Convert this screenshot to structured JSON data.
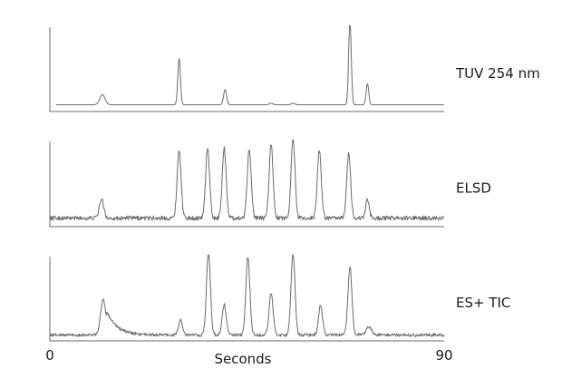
{
  "chart_data": {
    "type": "line",
    "xlabel": "Seconds",
    "xlim": [
      0,
      90
    ],
    "x_ticks": [
      "0",
      "90"
    ],
    "grid": false,
    "line_color": "#6a6a6a",
    "series": [
      {
        "name": "TUV 254 nm",
        "baseline": 0.08,
        "noise": 0.0,
        "peaks": [
          {
            "x": 12,
            "height": 0.12,
            "width": 0.6,
            "tail": 0
          },
          {
            "x": 29.5,
            "height": 0.55,
            "width": 0.3,
            "tail": 0
          },
          {
            "x": 40,
            "height": 0.18,
            "width": 0.35,
            "tail": 0
          },
          {
            "x": 50.5,
            "height": 0.02,
            "width": 0.4,
            "tail": 0
          },
          {
            "x": 55.5,
            "height": 0.02,
            "width": 0.4,
            "tail": 0
          },
          {
            "x": 68.5,
            "height": 1.0,
            "width": 0.3,
            "tail": 0
          },
          {
            "x": 72.5,
            "height": 0.25,
            "width": 0.3,
            "tail": 0
          }
        ]
      },
      {
        "name": "ELSD",
        "baseline": 0.1,
        "noise": 0.025,
        "peaks": [
          {
            "x": 11.8,
            "height": 0.22,
            "width": 0.5,
            "tail": 0
          },
          {
            "x": 29.5,
            "height": 0.8,
            "width": 0.45,
            "tail": 0
          },
          {
            "x": 36,
            "height": 0.82,
            "width": 0.45,
            "tail": 0
          },
          {
            "x": 39.8,
            "height": 0.82,
            "width": 0.45,
            "tail": 0
          },
          {
            "x": 45.5,
            "height": 0.82,
            "width": 0.45,
            "tail": 0
          },
          {
            "x": 50.5,
            "height": 0.86,
            "width": 0.45,
            "tail": 0
          },
          {
            "x": 55.5,
            "height": 0.94,
            "width": 0.45,
            "tail": 0
          },
          {
            "x": 61.5,
            "height": 0.8,
            "width": 0.45,
            "tail": 0
          },
          {
            "x": 68.2,
            "height": 0.76,
            "width": 0.45,
            "tail": 0
          },
          {
            "x": 72.5,
            "height": 0.22,
            "width": 0.4,
            "tail": 0
          }
        ]
      },
      {
        "name": "ES+ TIC",
        "baseline": 0.07,
        "noise": 0.018,
        "peaks": [
          {
            "x": 12.2,
            "height": 0.42,
            "width": 0.6,
            "tail": 2.2
          },
          {
            "x": 29.8,
            "height": 0.17,
            "width": 0.45,
            "tail": 0
          },
          {
            "x": 36.2,
            "height": 0.98,
            "width": 0.45,
            "tail": 0
          },
          {
            "x": 39.8,
            "height": 0.36,
            "width": 0.45,
            "tail": 0
          },
          {
            "x": 45.2,
            "height": 0.93,
            "width": 0.45,
            "tail": 0
          },
          {
            "x": 50.5,
            "height": 0.5,
            "width": 0.45,
            "tail": 0
          },
          {
            "x": 55.5,
            "height": 0.97,
            "width": 0.45,
            "tail": 0
          },
          {
            "x": 61.8,
            "height": 0.35,
            "width": 0.45,
            "tail": 0
          },
          {
            "x": 68.5,
            "height": 0.81,
            "width": 0.45,
            "tail": 0
          },
          {
            "x": 72.8,
            "height": 0.1,
            "width": 0.6,
            "tail": 0
          }
        ]
      }
    ]
  }
}
